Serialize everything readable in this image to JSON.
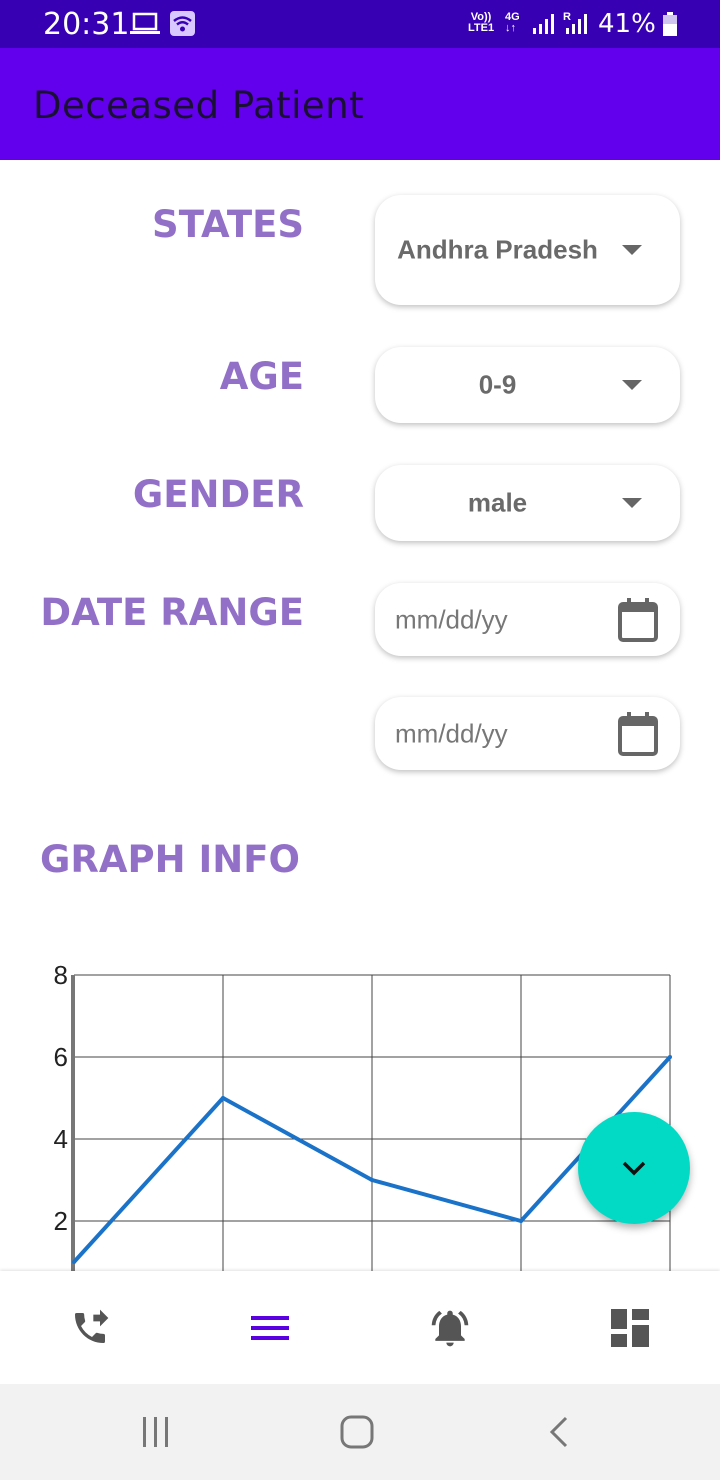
{
  "status_bar": {
    "time": "20:31",
    "volte_line1": "Vo))",
    "volte_line2": "LTE1",
    "network": "4G",
    "battery": "41%"
  },
  "app_bar": {
    "title": "Deceased Patient"
  },
  "form": {
    "states_label": "STATES",
    "states_value": "Andhra Pradesh",
    "age_label": "AGE",
    "age_value": "0-9",
    "gender_label": "GENDER",
    "gender_value": "male",
    "date_range_label": "DATE RANGE",
    "date_start_placeholder": "mm/dd/yy",
    "date_end_placeholder": "mm/dd/yy"
  },
  "graph": {
    "title": "GRAPH INFO"
  },
  "chart_data": {
    "type": "line",
    "x": [
      0,
      1,
      2,
      3,
      4
    ],
    "values": [
      1,
      5,
      3,
      2,
      6
    ],
    "ylim": [
      0,
      8
    ],
    "yticks": [
      2,
      4,
      6,
      8
    ],
    "grid": true,
    "color": "#1a73c8"
  },
  "bottom_nav": {
    "items": [
      {
        "icon": "phone-forward-icon",
        "active": false
      },
      {
        "icon": "menu-icon",
        "active": true
      },
      {
        "icon": "bell-ringing-icon",
        "active": false
      },
      {
        "icon": "dashboard-icon",
        "active": false
      }
    ]
  },
  "colors": {
    "app_bar": "#6200ee",
    "status_bar": "#3700b3",
    "label": "#9370c8",
    "fab": "#03dac5",
    "active_nav": "#5b00e0"
  }
}
